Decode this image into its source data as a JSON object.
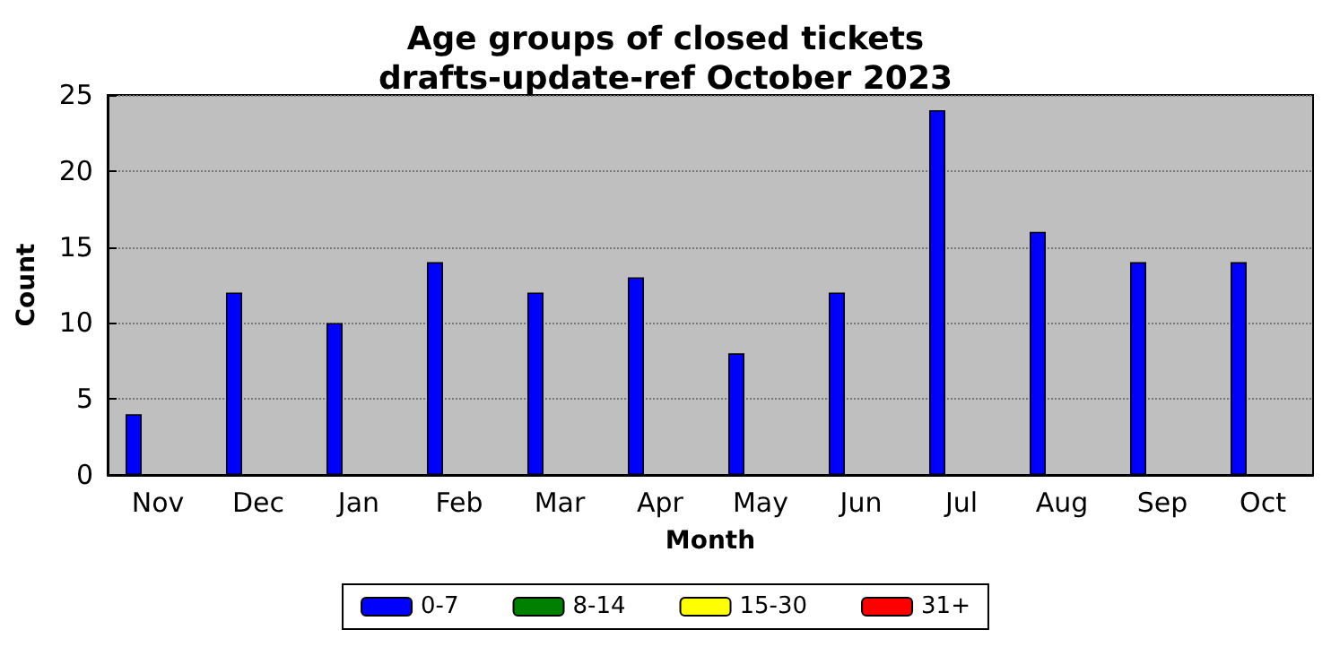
{
  "chart_data": {
    "type": "bar",
    "title": "Age groups of closed tickets\ndrafts-update-ref October 2023",
    "xlabel": "Month",
    "ylabel": "Count",
    "categories": [
      "Nov",
      "Dec",
      "Jan",
      "Feb",
      "Mar",
      "Apr",
      "May",
      "Jun",
      "Jul",
      "Aug",
      "Sep",
      "Oct"
    ],
    "series": [
      {
        "name": "0-7",
        "color": "#0000ff",
        "values": [
          4,
          12,
          10,
          14,
          12,
          13,
          8,
          12,
          24,
          16,
          14,
          14
        ]
      },
      {
        "name": "8-14",
        "color": "#008000",
        "values": [
          0,
          0,
          0,
          0,
          0,
          0,
          0,
          0,
          0,
          0,
          0,
          0
        ]
      },
      {
        "name": "15-30",
        "color": "#ffff00",
        "values": [
          0,
          0,
          0,
          0,
          0,
          0,
          0,
          0,
          0,
          0,
          0,
          0
        ]
      },
      {
        "name": "31+",
        "color": "#ff0000",
        "values": [
          0,
          0,
          0,
          0,
          0,
          0,
          0,
          0,
          0,
          0,
          0,
          0
        ]
      }
    ],
    "ylim": [
      0,
      25
    ],
    "yticks": [
      0,
      5,
      10,
      15,
      20,
      25
    ],
    "grid": "y",
    "legend": "bottom"
  }
}
